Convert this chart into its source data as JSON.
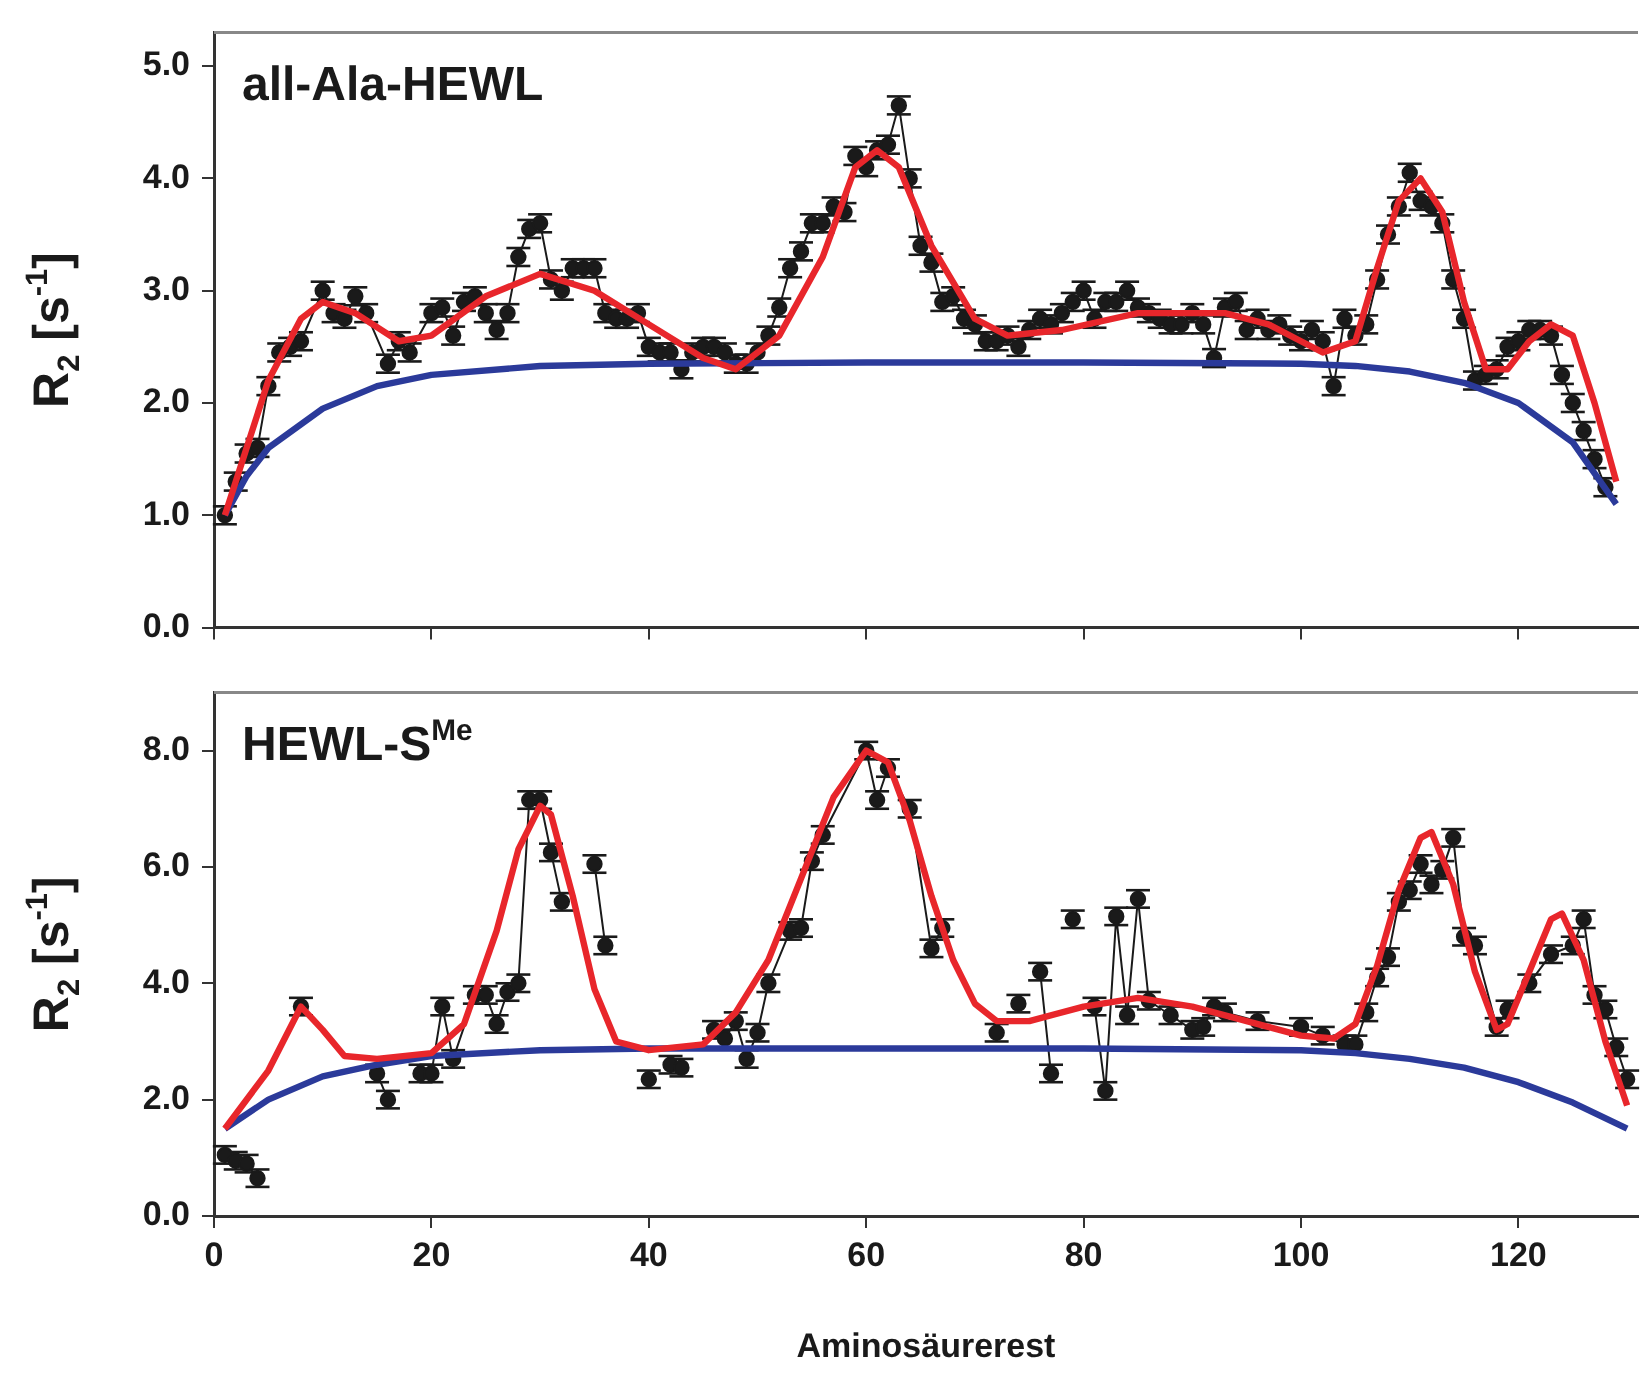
{
  "chart_data": [
    {
      "type": "line",
      "title": "all-Ala-HEWL",
      "ylabel": "R$_{2}$ [s$^{-1}$]",
      "xlim": [
        0,
        131
      ],
      "xticks": [
        0,
        20,
        40,
        60,
        80,
        100,
        120
      ],
      "ylim": [
        0,
        5.3
      ],
      "yticks": [
        {
          "value": 0,
          "label": "0.0"
        },
        {
          "value": 1,
          "label": "1.0"
        },
        {
          "value": 2,
          "label": "2.0"
        },
        {
          "value": 3,
          "label": "3.0"
        },
        {
          "value": 4,
          "label": "4.0"
        },
        {
          "value": 5,
          "label": "5.0"
        }
      ],
      "tick_labels": "y",
      "series": [
        {
          "type": "line",
          "color": "#1a1a1a",
          "marker": "circle",
          "x": [
            1,
            2,
            3,
            4,
            5,
            6,
            7,
            8,
            10,
            11,
            12,
            13,
            14,
            16,
            17,
            18,
            20,
            21,
            22,
            23,
            24,
            25,
            26,
            27,
            28,
            29,
            30,
            31,
            32,
            33,
            34,
            35,
            36,
            37,
            38,
            39,
            40,
            41,
            42,
            43,
            44,
            45,
            46,
            47,
            48,
            49,
            50,
            51,
            52,
            53,
            54,
            55,
            56,
            57,
            58,
            59,
            60,
            61,
            62,
            63,
            64,
            65,
            66,
            67,
            68,
            69,
            70,
            71,
            72,
            73,
            74,
            75,
            76,
            77,
            78,
            79,
            80,
            81,
            82,
            83,
            84,
            85,
            86,
            87,
            88,
            89,
            90,
            91,
            92,
            93,
            94,
            95,
            96,
            97,
            98,
            99,
            100,
            101,
            102,
            103,
            104,
            105,
            106,
            107,
            108,
            109,
            110,
            111,
            112,
            113,
            114,
            115,
            116,
            117,
            118,
            119,
            120,
            121,
            122,
            123,
            124,
            125,
            126,
            127,
            128
          ],
          "values": [
            1.0,
            1.3,
            1.55,
            1.6,
            2.15,
            2.45,
            2.5,
            2.55,
            3.0,
            2.8,
            2.75,
            2.95,
            2.8,
            2.35,
            2.55,
            2.45,
            2.8,
            2.85,
            2.6,
            2.9,
            2.95,
            2.8,
            2.65,
            2.8,
            3.3,
            3.55,
            3.6,
            3.1,
            3.0,
            3.2,
            3.2,
            3.2,
            2.8,
            2.75,
            2.75,
            2.8,
            2.5,
            2.45,
            2.45,
            2.3,
            2.45,
            2.5,
            2.5,
            2.45,
            2.35,
            2.35,
            2.45,
            2.6,
            2.85,
            3.2,
            3.35,
            3.6,
            3.6,
            3.75,
            3.7,
            4.2,
            4.1,
            4.25,
            4.3,
            4.65,
            4.0,
            3.4,
            3.25,
            2.9,
            2.95,
            2.75,
            2.7,
            2.55,
            2.55,
            2.6,
            2.5,
            2.65,
            2.75,
            2.7,
            2.8,
            2.9,
            3.0,
            2.75,
            2.9,
            2.9,
            3.0,
            2.85,
            2.8,
            2.75,
            2.7,
            2.7,
            2.8,
            2.7,
            2.4,
            2.85,
            2.9,
            2.65,
            2.75,
            2.65,
            2.7,
            2.6,
            2.55,
            2.65,
            2.55,
            2.15,
            2.75,
            2.6,
            2.7,
            3.1,
            3.5,
            3.75,
            4.05,
            3.8,
            3.75,
            3.6,
            3.1,
            2.75,
            2.2,
            2.25,
            2.3,
            2.5,
            2.55,
            2.65,
            2.65,
            2.6,
            2.25,
            2.0,
            1.75,
            1.5,
            1.25
          ],
          "errors": [
            0.08,
            0.08,
            0.08,
            0.08,
            0.08,
            0.08,
            0.08,
            0.08,
            0.08,
            0.08,
            0.08,
            0.08,
            0.08,
            0.08,
            0.08,
            0.08,
            0.08,
            0.08,
            0.08,
            0.08,
            0.08,
            0.08,
            0.08,
            0.08,
            0.08,
            0.08,
            0.08,
            0.08,
            0.08,
            0.08,
            0.08,
            0.08,
            0.08,
            0.08,
            0.08,
            0.08,
            0.08,
            0.08,
            0.08,
            0.08,
            0.08,
            0.08,
            0.08,
            0.08,
            0.08,
            0.08,
            0.08,
            0.08,
            0.08,
            0.08,
            0.08,
            0.08,
            0.08,
            0.08,
            0.08,
            0.08,
            0.08,
            0.08,
            0.08,
            0.08,
            0.08,
            0.08,
            0.08,
            0.08,
            0.08,
            0.08,
            0.08,
            0.08,
            0.08,
            0.08,
            0.08,
            0.08,
            0.08,
            0.08,
            0.08,
            0.08,
            0.08,
            0.08,
            0.08,
            0.08,
            0.08,
            0.08,
            0.08,
            0.08,
            0.08,
            0.08,
            0.08,
            0.08,
            0.08,
            0.08,
            0.08,
            0.08,
            0.08,
            0.08,
            0.08,
            0.08,
            0.08,
            0.08,
            0.08,
            0.08,
            0.08,
            0.08,
            0.08,
            0.08,
            0.08,
            0.08,
            0.08,
            0.08,
            0.08,
            0.08,
            0.08,
            0.08,
            0.08,
            0.08,
            0.08,
            0.08,
            0.08,
            0.08,
            0.08,
            0.08,
            0.08,
            0.08,
            0.08,
            0.08,
            0.08
          ]
        },
        {
          "type": "line",
          "color": "#e8262b",
          "marker": "none",
          "x": [
            1,
            5,
            8,
            10,
            13,
            17,
            20,
            25,
            30,
            35,
            40,
            45,
            48,
            52,
            56,
            59,
            61,
            63,
            66,
            70,
            73,
            78,
            85,
            93,
            97,
            100,
            102,
            105,
            107,
            109,
            111,
            113,
            115,
            117,
            119,
            121,
            123,
            125,
            127,
            129
          ],
          "values": [
            1.0,
            2.2,
            2.75,
            2.9,
            2.8,
            2.55,
            2.6,
            2.95,
            3.15,
            3.0,
            2.7,
            2.4,
            2.3,
            2.6,
            3.3,
            4.1,
            4.25,
            4.1,
            3.4,
            2.75,
            2.6,
            2.65,
            2.8,
            2.8,
            2.7,
            2.55,
            2.45,
            2.55,
            3.2,
            3.8,
            4.0,
            3.7,
            2.9,
            2.3,
            2.3,
            2.55,
            2.7,
            2.6,
            2.0,
            1.3
          ]
        },
        {
          "type": "line",
          "color": "#2b3a9a",
          "marker": "none",
          "x": [
            1,
            3,
            5,
            10,
            15,
            20,
            30,
            40,
            60,
            80,
            100,
            105,
            110,
            115,
            120,
            125,
            129
          ],
          "values": [
            1.0,
            1.35,
            1.6,
            1.95,
            2.15,
            2.25,
            2.33,
            2.35,
            2.36,
            2.36,
            2.35,
            2.33,
            2.28,
            2.18,
            2.0,
            1.65,
            1.1
          ]
        }
      ]
    },
    {
      "type": "line",
      "title": "HEWL-S$^{Me}$",
      "xlabel": "Aminosäurerest",
      "ylabel": "R$_{2}$ [s$^{-1}$]",
      "xlim": [
        0,
        131
      ],
      "xticks": [
        0,
        20,
        40,
        60,
        80,
        100,
        120
      ],
      "ylim": [
        0,
        9
      ],
      "yticks": [
        {
          "value": 0,
          "label": "0.0"
        },
        {
          "value": 2,
          "label": "2.0"
        },
        {
          "value": 4,
          "label": "4.0"
        },
        {
          "value": 6,
          "label": "6.0"
        },
        {
          "value": 8,
          "label": "8.0"
        }
      ],
      "series": [
        {
          "type": "line",
          "color": "#1a1a1a",
          "marker": "circle",
          "x": [
            1,
            2,
            3,
            4,
            5,
            8,
            9,
            15,
            16,
            17,
            19,
            20,
            21,
            22,
            24,
            25,
            26,
            27,
            28,
            29,
            30,
            31,
            32,
            33,
            35,
            36,
            37,
            40,
            41,
            42,
            43,
            44,
            46,
            47,
            48,
            49,
            50,
            51,
            53,
            54,
            55,
            56,
            60,
            61,
            62,
            64,
            66,
            67,
            69,
            72,
            73,
            74,
            75,
            76,
            77,
            78,
            79,
            80,
            81,
            82,
            83,
            84,
            85,
            86,
            88,
            90,
            91,
            92,
            93,
            96,
            100,
            102,
            104,
            105,
            106,
            107,
            108,
            109,
            110,
            111,
            112,
            113,
            114,
            115,
            116,
            118,
            119,
            121,
            123,
            125,
            126,
            127,
            128,
            129,
            130
          ],
          "values": [
            1.05,
            0.95,
            0.9,
            0.65,
            null,
            3.6,
            null,
            2.45,
            2.0,
            null,
            2.45,
            2.45,
            3.6,
            2.7,
            3.8,
            3.8,
            3.3,
            3.85,
            4.0,
            7.15,
            7.15,
            6.25,
            5.4,
            null,
            6.05,
            4.65,
            null,
            2.35,
            null,
            2.6,
            2.55,
            null,
            3.2,
            3.05,
            3.35,
            2.7,
            3.15,
            4.0,
            4.9,
            4.95,
            6.1,
            6.55,
            8.0,
            7.15,
            7.7,
            7.0,
            4.6,
            4.95,
            null,
            3.15,
            null,
            3.65,
            null,
            4.2,
            2.45,
            null,
            5.1,
            null,
            3.6,
            2.15,
            5.15,
            3.45,
            5.45,
            3.7,
            3.45,
            3.2,
            3.25,
            3.6,
            3.5,
            3.35,
            3.25,
            3.1,
            2.95,
            2.95,
            3.5,
            4.1,
            4.45,
            5.4,
            5.6,
            6.05,
            5.7,
            5.95,
            6.5,
            4.8,
            4.65,
            3.25,
            3.55,
            4.0,
            4.5,
            4.65,
            5.1,
            3.8,
            3.55,
            2.9,
            2.35
          ],
          "errors": [
            0.15,
            0.15,
            0.15,
            0.15,
            null,
            0.15,
            null,
            0.15,
            0.15,
            null,
            0.15,
            0.15,
            0.15,
            0.15,
            0.15,
            0.15,
            0.15,
            0.15,
            0.15,
            0.15,
            0.15,
            0.15,
            0.15,
            null,
            0.15,
            0.15,
            null,
            0.15,
            null,
            0.15,
            0.15,
            null,
            0.15,
            0.15,
            0.15,
            0.15,
            0.15,
            0.15,
            0.15,
            0.15,
            0.15,
            0.15,
            0.15,
            0.15,
            0.15,
            0.15,
            0.15,
            0.15,
            null,
            0.15,
            null,
            0.15,
            null,
            0.15,
            0.15,
            null,
            0.15,
            null,
            0.15,
            0.15,
            0.15,
            0.15,
            0.15,
            0.15,
            0.15,
            0.15,
            0.15,
            0.15,
            0.15,
            0.15,
            0.15,
            0.15,
            0.15,
            0.15,
            0.15,
            0.15,
            0.15,
            0.15,
            0.15,
            0.15,
            0.15,
            0.15,
            0.15,
            0.15,
            0.15,
            0.15,
            0.15,
            0.15,
            0.15,
            0.15,
            0.15,
            0.15,
            0.15,
            0.15,
            0.15
          ]
        },
        {
          "type": "line",
          "color": "#e8262b",
          "marker": "none",
          "x": [
            1,
            5,
            8,
            10,
            12,
            15,
            20,
            23,
            26,
            28,
            30,
            31,
            33,
            35,
            37,
            40,
            45,
            48,
            51,
            54,
            57,
            60,
            62,
            64,
            66,
            68,
            70,
            72,
            75,
            80,
            85,
            90,
            95,
            100,
            103,
            105,
            107,
            109,
            111,
            112,
            114,
            116,
            118,
            119,
            121,
            123,
            124,
            126,
            128,
            130
          ],
          "values": [
            1.5,
            2.5,
            3.6,
            3.2,
            2.75,
            2.7,
            2.8,
            3.3,
            4.9,
            6.3,
            7.05,
            6.9,
            5.5,
            3.9,
            3.0,
            2.85,
            2.95,
            3.5,
            4.4,
            5.8,
            7.2,
            8.0,
            7.8,
            6.8,
            5.5,
            4.4,
            3.65,
            3.35,
            3.35,
            3.6,
            3.75,
            3.6,
            3.35,
            3.1,
            3.05,
            3.3,
            4.3,
            5.6,
            6.5,
            6.6,
            5.7,
            4.2,
            3.2,
            3.3,
            4.2,
            5.1,
            5.2,
            4.4,
            3.0,
            1.9
          ]
        },
        {
          "type": "line",
          "color": "#2b3a9a",
          "marker": "none",
          "x": [
            1,
            5,
            10,
            15,
            20,
            30,
            40,
            60,
            80,
            100,
            105,
            110,
            115,
            120,
            125,
            130
          ],
          "values": [
            1.5,
            2.0,
            2.4,
            2.6,
            2.75,
            2.85,
            2.88,
            2.88,
            2.88,
            2.85,
            2.8,
            2.7,
            2.55,
            2.3,
            1.95,
            1.5
          ]
        }
      ]
    }
  ]
}
